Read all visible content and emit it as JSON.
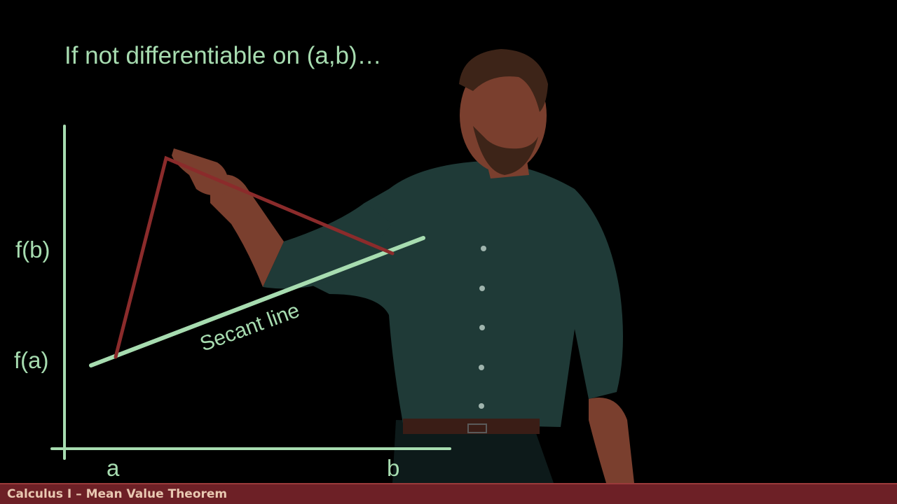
{
  "slide": {
    "title": "If not differentiable on (a,b)…",
    "secant_label": "Secant line"
  },
  "axes": {
    "fb_label": "f(b)",
    "fa_label": "f(a)",
    "a_label": "a",
    "b_label": "b"
  },
  "footer": {
    "text": "Calculus I – Mean Value Theorem"
  },
  "colors": {
    "chalk_green": "#a7dcb0",
    "curve_red": "#8b2b2b",
    "footer_bg": "#6d2026",
    "footer_text": "#e9c9b2",
    "presenter_shirt": "#1f3a37",
    "presenter_skin": "#7a3f2e",
    "presenter_hair": "#3d2418"
  }
}
